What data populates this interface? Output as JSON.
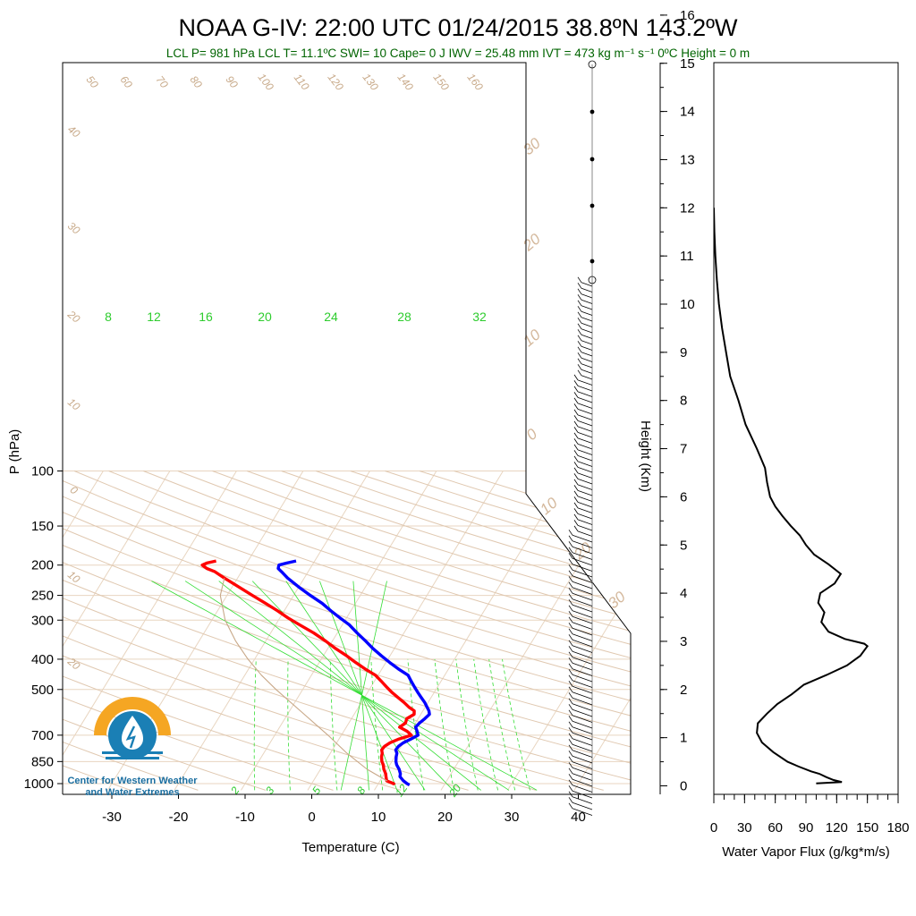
{
  "title": "NOAA G-IV: 22:00 UTC 01/24/2015  38.8ºN 143.2ºW",
  "subtitle": "LCL P= 981 hPa  LCL T= 11.1ºC  SWI= 10  Cape= 0 J  IWV = 25.48 mm  IVT = 473 kg m⁻¹ s⁻¹  0ºC Height = 0 m",
  "logo": {
    "line1": "Center for Western Weather",
    "line2": "and Water Extremes",
    "colors": {
      "sun": "#f5a623",
      "water": "#1a7fb5"
    }
  },
  "colors": {
    "temperature": "#ff0000",
    "dewpoint": "#0000ff",
    "isobar": "#e8d5c0",
    "dry_adiabat": "#e0c8b0",
    "mixing_ratio": "#33dd33",
    "parcel": "#c8a888"
  },
  "chart_data": [
    {
      "type": "line",
      "name": "skew-t",
      "xlabel": "Temperature (C)",
      "ylabel": "P (hPa)",
      "x_ticks": [
        -30,
        -20,
        -10,
        0,
        10,
        20,
        30,
        40
      ],
      "xlim": [
        -34,
        52
      ],
      "y_scale": "log",
      "y_ticks": [
        100,
        150,
        200,
        250,
        300,
        400,
        500,
        700,
        850,
        1000
      ],
      "ylim": [
        1050,
        100
      ],
      "dry_adiabat_labels": [
        "50",
        "60",
        "70",
        "80",
        "90",
        "100",
        "110",
        "120",
        "130",
        "140",
        "150",
        "160"
      ],
      "left_side_labels": [
        "40",
        "30",
        "20",
        "10",
        "0",
        "10",
        "20"
      ],
      "right_side_labels": [
        "30",
        "20",
        "10",
        "0",
        "10",
        "20",
        "30"
      ],
      "mixing_ratio_top_labels": [
        "8",
        "12",
        "16",
        "20",
        "24",
        "28",
        "32"
      ],
      "mixing_ratio_bottom_labels": [
        "2",
        "3",
        "5",
        "8",
        "12",
        "20"
      ],
      "series": [
        {
          "key": "temperature",
          "p": [
            1010,
            1000,
            980,
            950,
            930,
            900,
            870,
            850,
            820,
            800,
            780,
            760,
            740,
            720,
            700,
            680,
            660,
            640,
            620,
            600,
            585,
            570,
            550,
            530,
            510,
            490,
            470,
            450,
            430,
            410,
            390,
            370,
            350,
            330,
            310,
            295,
            280,
            265,
            250,
            235,
            220,
            210,
            205,
            200,
            197,
            194
          ],
          "t": [
            12.5,
            12.3,
            11.0,
            10.5,
            10.2,
            9.5,
            9.0,
            8.5,
            8.0,
            7.8,
            7.4,
            7.5,
            8.0,
            9.0,
            10.5,
            9.5,
            8.0,
            8.5,
            8.3,
            9.0,
            8.7,
            7.6,
            6.4,
            5.0,
            3.6,
            2.3,
            1.0,
            -0.4,
            -2.5,
            -4.5,
            -6.5,
            -8.8,
            -11.0,
            -13.5,
            -16.5,
            -18.8,
            -21.0,
            -23.5,
            -26.2,
            -29.0,
            -32.0,
            -34.0,
            -35.5,
            -36.5,
            -36.0,
            -34.8
          ]
        },
        {
          "key": "dewpoint",
          "p": [
            1010,
            1000,
            980,
            950,
            930,
            900,
            870,
            850,
            820,
            800,
            780,
            760,
            740,
            720,
            700,
            680,
            660,
            640,
            620,
            600,
            585,
            570,
            550,
            530,
            510,
            490,
            470,
            450,
            430,
            410,
            390,
            370,
            350,
            330,
            310,
            295,
            280,
            265,
            250,
            235,
            220,
            210,
            205,
            200,
            197,
            194
          ],
          "t": [
            14.8,
            14.3,
            13.5,
            12.6,
            12.4,
            11.8,
            11.0,
            10.6,
            10.2,
            10.0,
            9.5,
            9.6,
            10.0,
            10.8,
            11.5,
            11.0,
            10.4,
            10.6,
            11.0,
            11.3,
            10.9,
            10.3,
            9.5,
            8.5,
            7.5,
            6.5,
            5.5,
            4.5,
            2.5,
            0.6,
            -1.3,
            -3.2,
            -5.0,
            -7.0,
            -9.0,
            -11.0,
            -13.0,
            -15.0,
            -17.5,
            -20.0,
            -22.5,
            -24.0,
            -24.8,
            -25.0,
            -24.0,
            -22.8
          ]
        },
        {
          "key": "parcel",
          "p": [
            981,
            900,
            800,
            700,
            600,
            500,
            450,
            400,
            350,
            300,
            250,
            220
          ],
          "t": [
            11.1,
            7.0,
            2.5,
            -2.0,
            -7.5,
            -14.0,
            -17.5,
            -21.0,
            -24.5,
            -28.0,
            -31.0,
            -32.0
          ]
        }
      ]
    },
    {
      "type": "line",
      "name": "water-vapor-flux",
      "xlabel": "Water Vapor Flux (g/kg*m/s)",
      "ylabel": "Height (Km)",
      "xlim": [
        0,
        180
      ],
      "x_ticks": [
        0,
        30,
        60,
        90,
        120,
        150,
        180
      ],
      "ylim": [
        -0.1,
        16.3
      ],
      "y_ticks": [
        0,
        1,
        2,
        3,
        4,
        5,
        6,
        7,
        8,
        9,
        10,
        11,
        12,
        13,
        14,
        15,
        16
      ],
      "series": [
        {
          "key": "flux",
          "height": [
            0.05,
            0.08,
            0.12,
            0.18,
            0.25,
            0.3,
            0.4,
            0.5,
            0.7,
            0.9,
            1.1,
            1.3,
            1.5,
            1.7,
            1.9,
            2.1,
            2.3,
            2.5,
            2.7,
            2.9,
            2.95,
            3.05,
            3.2,
            3.4,
            3.6,
            3.8,
            4.0,
            4.2,
            4.4,
            4.6,
            4.8,
            5.0,
            5.2,
            5.4,
            5.6,
            5.8,
            6.0,
            6.3,
            6.6,
            7.0,
            7.5,
            8.0,
            8.5,
            9.0,
            9.5,
            10.0,
            10.5,
            11.0,
            11.5,
            12.0
          ],
          "flux": [
            100,
            125,
            117,
            110,
            103,
            95,
            83,
            72,
            58,
            47,
            42,
            43,
            52,
            62,
            76,
            88,
            110,
            130,
            143,
            150,
            147,
            128,
            112,
            105,
            108,
            102,
            104,
            118,
            124,
            112,
            98,
            90,
            84,
            75,
            67,
            60,
            55,
            52,
            50,
            42,
            31,
            24,
            16,
            12,
            8,
            5,
            3,
            1.5,
            0.5,
            0
          ]
        }
      ]
    }
  ]
}
